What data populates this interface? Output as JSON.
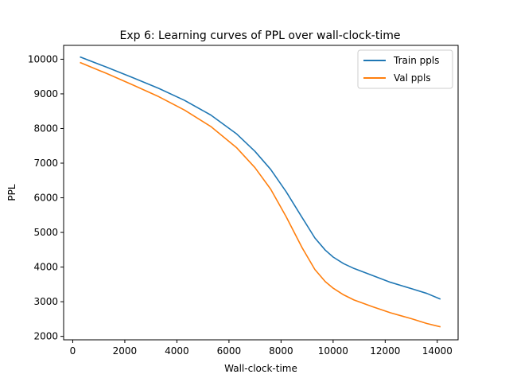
{
  "chart_data": {
    "type": "line",
    "title": "Exp 6: Learning curves of PPL over wall-clock-time",
    "xlabel": "Wall-clock-time",
    "ylabel": "PPL",
    "xlim": [
      -350,
      14800
    ],
    "ylim": [
      1900,
      10400
    ],
    "xticks": [
      0,
      2000,
      4000,
      6000,
      8000,
      10000,
      12000,
      14000
    ],
    "yticks": [
      2000,
      3000,
      4000,
      5000,
      6000,
      7000,
      8000,
      9000,
      10000
    ],
    "xtick_labels": [
      "0",
      "2000",
      "4000",
      "6000",
      "8000",
      "10000",
      "12000",
      "14000"
    ],
    "ytick_labels": [
      "2000",
      "3000",
      "4000",
      "5000",
      "6000",
      "7000",
      "8000",
      "9000",
      "10000"
    ],
    "grid": false,
    "legend_position": "top-right",
    "series": [
      {
        "name": "Train ppls",
        "color": "#1f77b4",
        "x": [
          300,
          1300,
          2300,
          3300,
          4300,
          5300,
          6300,
          7000,
          7600,
          8200,
          8800,
          9300,
          9700,
          10000,
          10400,
          10800,
          11500,
          12200,
          13000,
          13600,
          14100
        ],
        "y": [
          10060,
          9770,
          9470,
          9160,
          8810,
          8390,
          7840,
          7340,
          6820,
          6170,
          5440,
          4840,
          4490,
          4290,
          4100,
          3960,
          3760,
          3560,
          3380,
          3240,
          3080
        ]
      },
      {
        "name": "Val ppls",
        "color": "#ff7f0e",
        "x": [
          300,
          1300,
          2300,
          3300,
          4300,
          5300,
          6300,
          7000,
          7600,
          8200,
          8800,
          9300,
          9700,
          10000,
          10400,
          10800,
          11500,
          12200,
          13000,
          13600,
          14100
        ],
        "y": [
          9900,
          9590,
          9260,
          8920,
          8530,
          8060,
          7440,
          6870,
          6250,
          5450,
          4570,
          3930,
          3580,
          3390,
          3200,
          3050,
          2860,
          2680,
          2510,
          2370,
          2280
        ]
      }
    ]
  }
}
